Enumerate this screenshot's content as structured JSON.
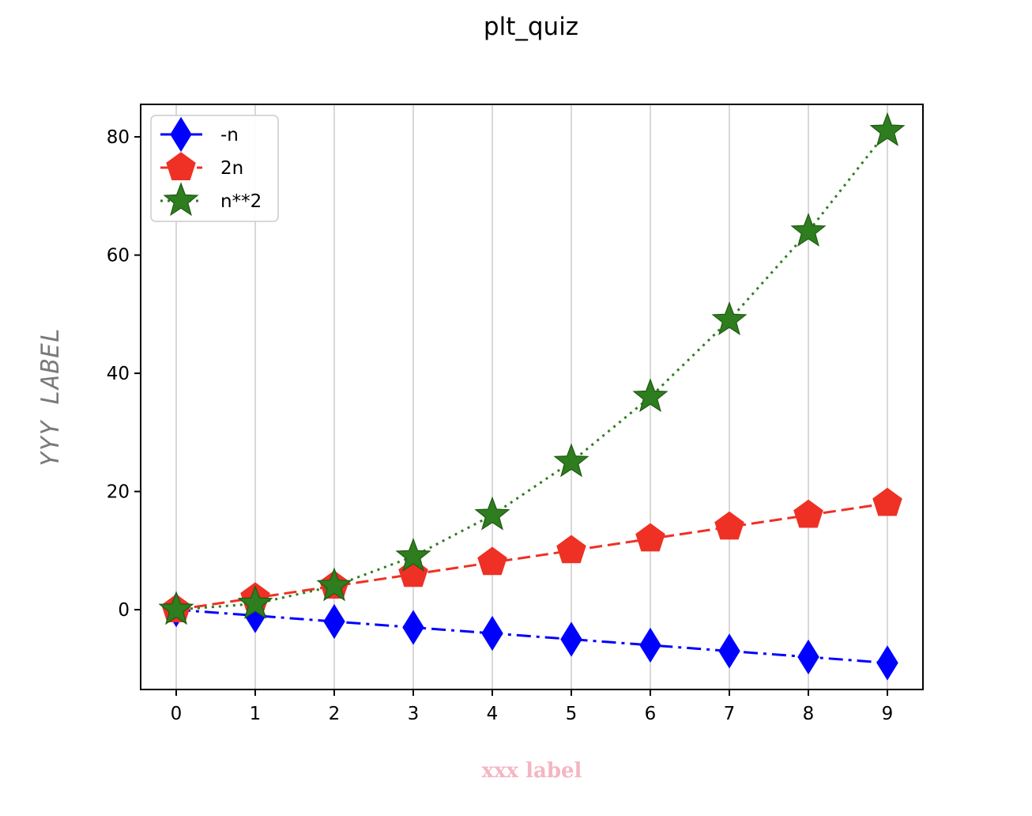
{
  "chart_data": {
    "type": "line",
    "title": "plt_quiz",
    "xlabel": "xxx label",
    "ylabel": "YYY LABEL",
    "x": [
      0,
      1,
      2,
      3,
      4,
      5,
      6,
      7,
      8,
      9
    ],
    "xticks": [
      "0",
      "1",
      "2",
      "3",
      "4",
      "5",
      "6",
      "7",
      "8",
      "9"
    ],
    "yticks": [
      "0",
      "20",
      "40",
      "60",
      "80"
    ],
    "xlim": [
      -0.45,
      9.45
    ],
    "ylim": [
      -13.5,
      85.5
    ],
    "grid": "vertical",
    "legend_position": "upper-left",
    "series": [
      {
        "name": "-n",
        "values": [
          0,
          -1,
          -2,
          -3,
          -4,
          -5,
          -6,
          -7,
          -8,
          -9
        ],
        "color": "#0000ff",
        "linestyle": "dashdot",
        "marker": "diamond"
      },
      {
        "name": "2n",
        "values": [
          0,
          2,
          4,
          6,
          8,
          10,
          12,
          14,
          16,
          18
        ],
        "color": "#ee3124",
        "linestyle": "dashed",
        "marker": "pentagon"
      },
      {
        "name": "n**2",
        "values": [
          0,
          1,
          4,
          9,
          16,
          25,
          36,
          49,
          64,
          81
        ],
        "color": "#2e7d1e",
        "linestyle": "dotted",
        "marker": "star"
      }
    ]
  }
}
